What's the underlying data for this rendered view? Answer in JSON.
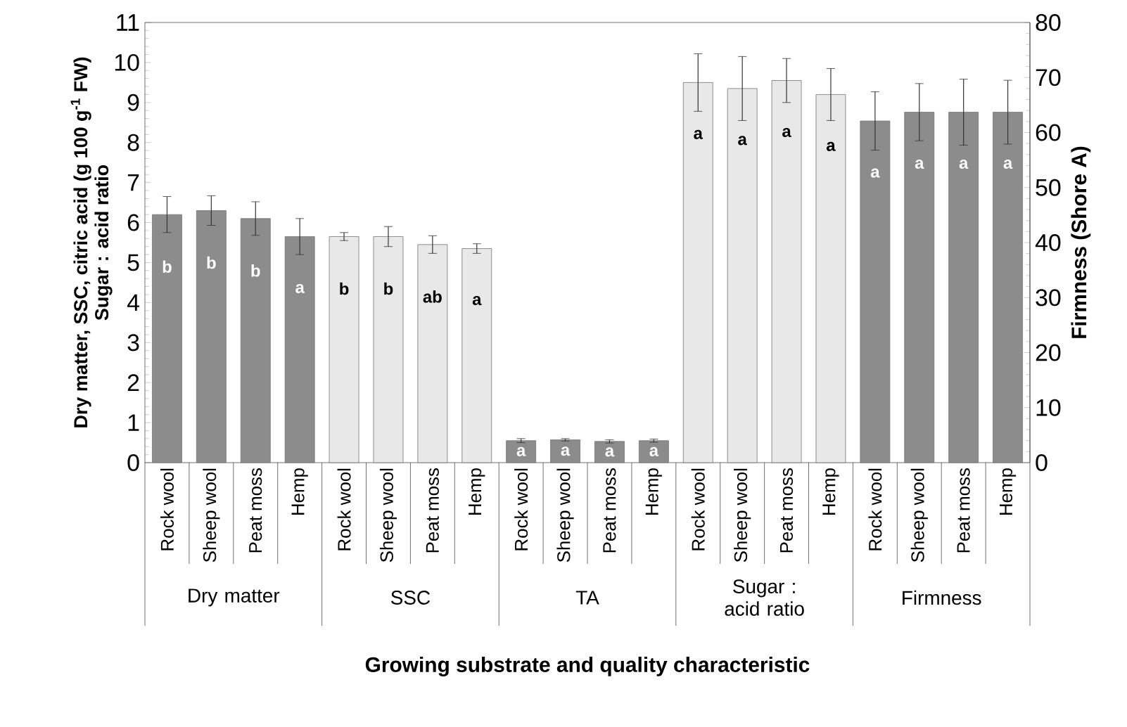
{
  "chart_data": {
    "type": "bar",
    "xlabel": "Growing substrate and quality characteristic",
    "ylabel": "Dry matter, SSC, citric acid (g 100 g$^{-1}$ FW) Sugar : acid ratio",
    "y2label": "Firmness (Shore A)",
    "annotations": [
      "Dry matter",
      "SSC",
      "TA",
      "Sugar : acid ratio",
      "Firmness"
    ],
    "categories": [
      "Rock wool",
      "Sheep wool",
      "Peat moss",
      "Hemp",
      "Rock wool",
      "Sheep wool",
      "Peat moss",
      "Hemp",
      "Rock wool",
      "Sheep wool",
      "Peat moss",
      "Hemp",
      "Rock wool",
      "Sheep wool",
      "Peat moss",
      "Hemp",
      "Rock wool",
      "Sheep wool",
      "Peat moss",
      "Hemp"
    ],
    "ylim": [
      0,
      11
    ],
    "yticks": [
      0,
      1,
      2,
      3,
      4,
      5,
      6,
      7,
      8,
      9,
      10,
      11
    ],
    "y2lim": [
      0,
      80
    ],
    "y2ticks": [
      0,
      10,
      20,
      30,
      40,
      50,
      60,
      70,
      80
    ],
    "series": [
      {
        "color": "#8c8c8c",
        "values": [
          6.2,
          6.3,
          6.1,
          5.65,
          null,
          null,
          null,
          null,
          null,
          null,
          null,
          null,
          null,
          null,
          null,
          null,
          null,
          null,
          null,
          null
        ],
        "errors": [
          0.45,
          0.37,
          0.42,
          0.45,
          null,
          null,
          null,
          null,
          null,
          null,
          null,
          null,
          null,
          null,
          null,
          null,
          null,
          null,
          null,
          null
        ],
        "value_labels": [
          "b",
          "b",
          "b",
          "a",
          null,
          null,
          null,
          null,
          null,
          null,
          null,
          null,
          null,
          null,
          null,
          null,
          null,
          null,
          null,
          null
        ]
      },
      {
        "color": "#e8e8e8",
        "values": [
          null,
          null,
          null,
          null,
          5.65,
          5.65,
          5.45,
          5.35,
          null,
          null,
          null,
          null,
          null,
          null,
          null,
          null,
          null,
          null,
          null,
          null
        ],
        "errors": [
          null,
          null,
          null,
          null,
          0.1,
          0.25,
          0.22,
          0.12,
          null,
          null,
          null,
          null,
          null,
          null,
          null,
          null,
          null,
          null,
          null,
          null
        ],
        "value_labels": [
          null,
          null,
          null,
          null,
          "b",
          "b",
          "ab",
          "a",
          null,
          null,
          null,
          null,
          null,
          null,
          null,
          null,
          null,
          null,
          null,
          null
        ]
      },
      {
        "color": "#8c8c8c",
        "values": [
          null,
          null,
          null,
          null,
          null,
          null,
          null,
          null,
          0.55,
          0.57,
          0.53,
          0.55,
          null,
          null,
          null,
          null,
          null,
          null,
          null,
          null
        ],
        "errors": [
          null,
          null,
          null,
          null,
          null,
          null,
          null,
          null,
          0.05,
          0.03,
          0.04,
          0.04,
          null,
          null,
          null,
          null,
          null,
          null,
          null,
          null
        ],
        "value_labels": [
          null,
          null,
          null,
          null,
          null,
          null,
          null,
          null,
          "a",
          "a",
          "a",
          "a",
          null,
          null,
          null,
          null,
          null,
          null,
          null,
          null
        ]
      },
      {
        "color": "#e8e8e8",
        "values": [
          null,
          null,
          null,
          null,
          null,
          null,
          null,
          null,
          null,
          null,
          null,
          null,
          9.5,
          9.35,
          9.55,
          9.2,
          null,
          null,
          null,
          null
        ],
        "errors": [
          null,
          null,
          null,
          null,
          null,
          null,
          null,
          null,
          null,
          null,
          null,
          null,
          0.72,
          0.8,
          0.55,
          0.65,
          null,
          null,
          null,
          null
        ],
        "value_labels": [
          null,
          null,
          null,
          null,
          null,
          null,
          null,
          null,
          null,
          null,
          null,
          null,
          "a",
          "a",
          "a",
          "a",
          null,
          null,
          null,
          null
        ]
      },
      {
        "color": "#8c8c8c",
        "axis": "y2",
        "values": [
          null,
          null,
          null,
          null,
          null,
          null,
          null,
          null,
          null,
          null,
          null,
          null,
          null,
          null,
          null,
          null,
          62.1,
          63.7,
          63.7,
          63.7
        ],
        "errors": [
          null,
          null,
          null,
          null,
          null,
          null,
          null,
          null,
          null,
          null,
          null,
          null,
          null,
          null,
          null,
          null,
          5.3,
          5.2,
          6,
          5.8
        ],
        "value_labels": [
          null,
          null,
          null,
          null,
          null,
          null,
          null,
          null,
          null,
          null,
          null,
          null,
          null,
          null,
          null,
          null,
          "a",
          "a",
          "a",
          "a"
        ]
      }
    ]
  }
}
